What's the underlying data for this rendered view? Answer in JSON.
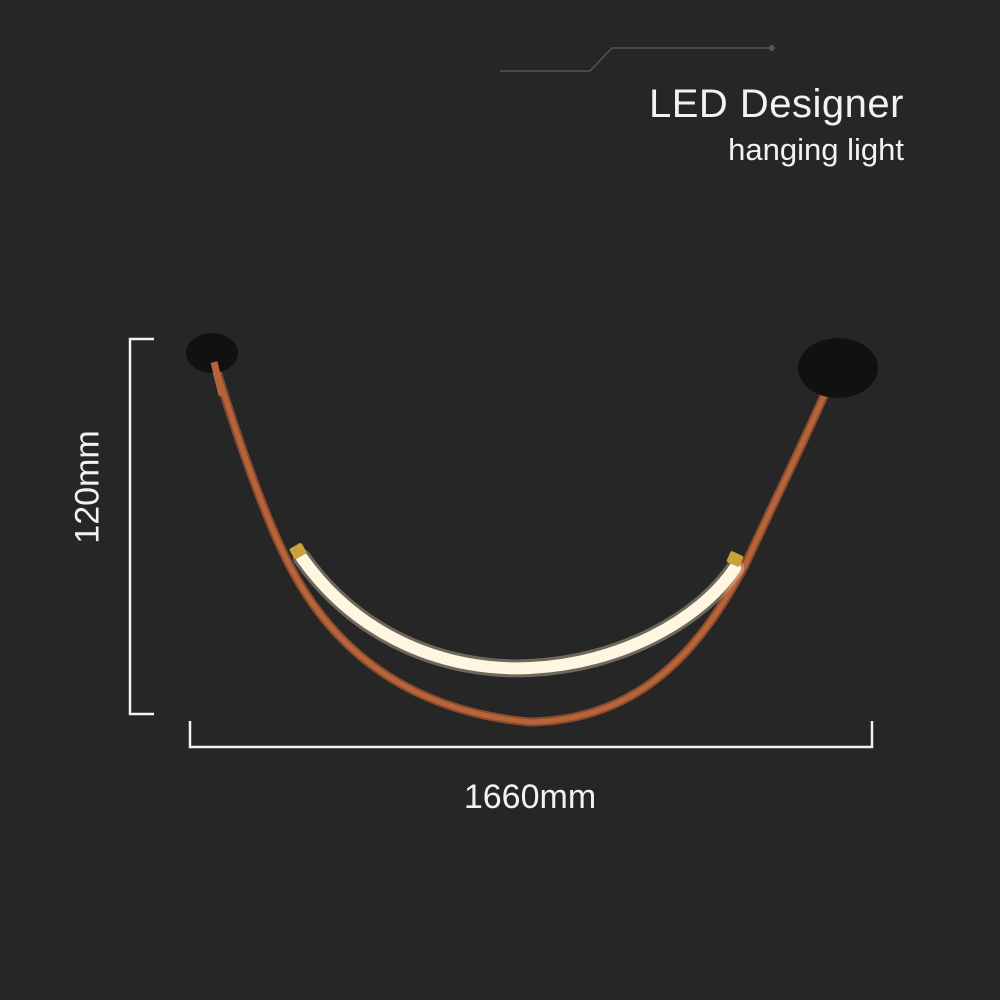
{
  "product": {
    "title": "LED Designer",
    "subtitle": "hanging light"
  },
  "dimensions": {
    "height_label": "120mm",
    "width_label": "1660mm"
  },
  "colors": {
    "background": "#262626",
    "strap": "#b8643a",
    "light_tube": "#fff6e2",
    "canopy": "#111111",
    "brass": "#c9a23a"
  }
}
